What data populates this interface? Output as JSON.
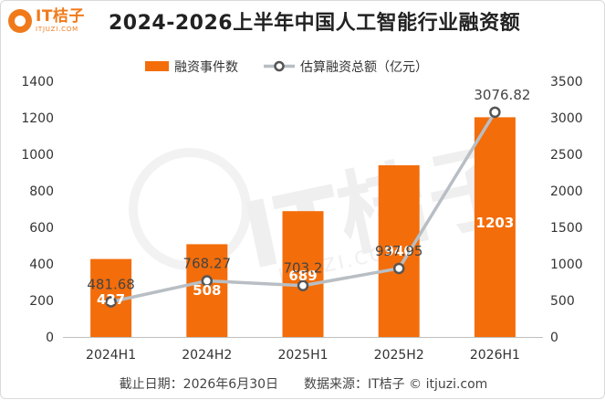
{
  "brand": {
    "name": "IT桔子",
    "url": "ITJUZI.COM",
    "watermark": "IT桔子",
    "watermark_url": "ITJUZI.COM"
  },
  "colors": {
    "bar": "#f36d0a",
    "line": "#b8bec4",
    "marker_fill": "#ffffff",
    "marker_stroke": "#555555",
    "brand": "#f07a1a"
  },
  "footer": {
    "text": "截止日期：2026年6月30日　　数据来源：IT桔子 © itjuzi.com"
  },
  "chart_data": {
    "type": "bar",
    "title": "2024-2026上半年中国人工智能行业融资额",
    "categories": [
      "2024H1",
      "2024H2",
      "2025H1",
      "2025H2",
      "2026H1"
    ],
    "series": [
      {
        "name": "融资事件数",
        "type": "bar",
        "axis": "left",
        "values": [
          427,
          508,
          689,
          940,
          1203
        ],
        "labels": [
          "427",
          "508",
          "689",
          "940",
          "1203"
        ]
      },
      {
        "name": "估算融资总额（亿元）",
        "type": "line",
        "axis": "right",
        "values": [
          481.68,
          768.27,
          703.2,
          937.95,
          3076.82
        ],
        "labels": [
          "481.68",
          "768.27",
          "703.2",
          "937.95",
          "3076.82"
        ]
      }
    ],
    "y_left": {
      "min": 0,
      "max": 1400,
      "ticks": [
        0,
        200,
        400,
        600,
        800,
        1000,
        1200,
        1400
      ],
      "tick_labels": [
        "0",
        "200",
        "400",
        "600",
        "800",
        "1000",
        "1200",
        "1400"
      ]
    },
    "y_right": {
      "min": 0,
      "max": 3500,
      "ticks": [
        0,
        500,
        1000,
        1500,
        2000,
        2500,
        3000,
        3500
      ],
      "tick_labels": [
        "0",
        "500",
        "1000",
        "1500",
        "2000",
        "2500",
        "3000",
        "3500"
      ]
    },
    "grid": false,
    "legend": {
      "position": "top-center"
    }
  }
}
